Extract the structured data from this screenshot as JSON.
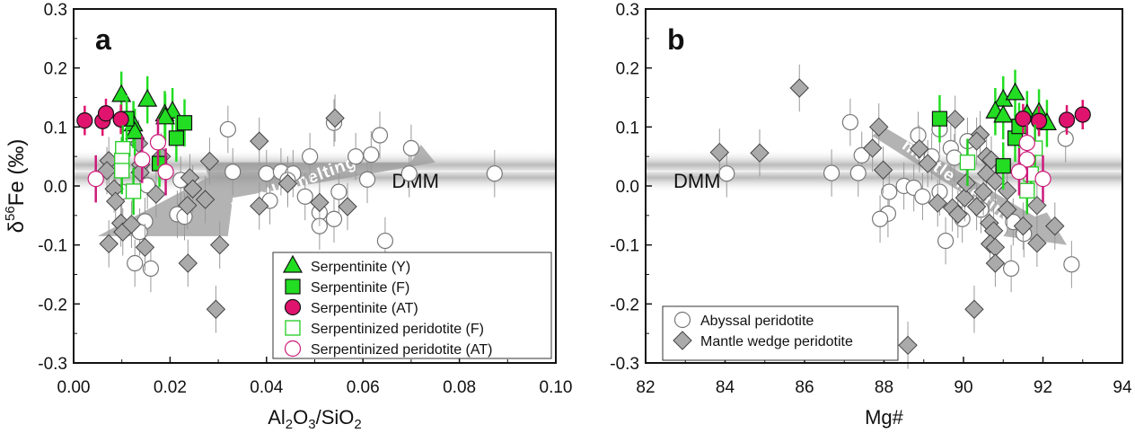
{
  "chart_data": [
    {
      "type": "scatter",
      "panel_label": "a",
      "xlabel_parts": [
        "Al",
        "2",
        "O",
        "3",
        "/SiO",
        "2"
      ],
      "ylabel_parts": [
        "δ",
        "56",
        "Fe (‰)"
      ],
      "xlim": [
        0,
        0.1
      ],
      "ylim": [
        -0.3,
        0.3
      ],
      "xticks": [
        "0.00",
        "0.02",
        "0.04",
        "0.06",
        "0.08",
        "0.10"
      ],
      "yticks": [
        "0.3",
        "0.2",
        "0.1",
        "0.0",
        "-0.1",
        "-0.2",
        "-0.3"
      ],
      "reference_band": {
        "label": "DMM",
        "y": 0.025
      },
      "annotation": "mantle melting",
      "legend_position": "bottom-right",
      "series": [
        {
          "name": "Abyssal peridotite",
          "marker": "open-circle",
          "color": "#999999",
          "yerr": 0.04,
          "in_legend": false,
          "points": [
            [
              0.032,
              0.096
            ],
            [
              0.033,
              0.024
            ],
            [
              0.04,
              0.021
            ],
            [
              0.043,
              0.024
            ],
            [
              0.049,
              0.05
            ],
            [
              0.048,
              -0.018
            ],
            [
              0.054,
              0.107
            ],
            [
              0.051,
              -0.045
            ],
            [
              0.051,
              -0.068
            ],
            [
              0.054,
              -0.056
            ],
            [
              0.055,
              -0.01
            ],
            [
              0.0585,
              0.05
            ],
            [
              0.0609,
              0.011
            ],
            [
              0.0617,
              0.053
            ],
            [
              0.0635,
              0.086
            ],
            [
              0.0646,
              -0.093
            ],
            [
              0.0696,
              0.021
            ],
            [
              0.07,
              0.064
            ],
            [
              0.0873,
              0.021
            ],
            [
              0.0127,
              -0.131
            ],
            [
              0.016,
              -0.14
            ],
            [
              0.0148,
              -0.06
            ],
            [
              0.0137,
              -0.078
            ],
            [
              0.0153,
              0.001
            ],
            [
              0.0222,
              0.01
            ],
            [
              0.0215,
              -0.048
            ],
            [
              0.023,
              -0.052
            ],
            [
              0.0407,
              -0.025
            ],
            [
              0.0455,
              0.021
            ],
            [
              0.0444,
              0.01
            ],
            [
              0.01,
              -0.01
            ]
          ]
        },
        {
          "name": "Mantle wedge peridotite",
          "marker": "diamond",
          "color": "#aaaaaa",
          "yerr": 0.04,
          "in_legend": false,
          "points": [
            [
              0.0542,
              0.115
            ],
            [
              0.0385,
              0.076
            ],
            [
              0.0282,
              0.042
            ],
            [
              0.0241,
              0.014
            ],
            [
              0.0247,
              -0.005
            ],
            [
              0.0236,
              -0.033
            ],
            [
              0.0273,
              -0.023
            ],
            [
              0.0303,
              -0.1
            ],
            [
              0.0237,
              -0.131
            ],
            [
              0.0295,
              -0.209
            ],
            [
              0.0385,
              -0.034
            ],
            [
              0.0444,
              0.004
            ],
            [
              0.051,
              -0.028
            ],
            [
              0.0568,
              -0.035
            ],
            [
              0.0171,
              -0.014
            ],
            [
              0.0182,
              0.05
            ],
            [
              0.0139,
              0.036
            ],
            [
              0.0135,
              0.072
            ],
            [
              0.0073,
              0.043
            ],
            [
              0.0069,
              0.026
            ],
            [
              0.0084,
              -0.005
            ],
            [
              0.0087,
              -0.026
            ],
            [
              0.0098,
              -0.063
            ],
            [
              0.0102,
              -0.078
            ],
            [
              0.012,
              -0.065
            ],
            [
              0.0073,
              -0.098
            ],
            [
              0.0148,
              -0.104
            ],
            [
              0.0138,
              0.023
            ]
          ]
        },
        {
          "name": "Serpentinite (Y)",
          "marker": "triangle",
          "color": "#22dd22",
          "yerr": 0.04,
          "in_legend": true,
          "points": [
            [
              0.0099,
              0.154
            ],
            [
              0.0153,
              0.146
            ],
            [
              0.0124,
              0.104
            ],
            [
              0.0127,
              0.091
            ],
            [
              0.0189,
              0.121
            ],
            [
              0.0205,
              0.126
            ],
            [
              0.019,
              0.116
            ]
          ]
        },
        {
          "name": "Serpentinite (F)",
          "marker": "square",
          "color": "#22dd22",
          "yerr": 0.04,
          "in_legend": true,
          "points": [
            [
              0.023,
              0.107
            ],
            [
              0.0213,
              0.081
            ],
            [
              0.011,
              0.114
            ],
            [
              0.0178,
              0.038
            ]
          ]
        },
        {
          "name": "Serpentinite (AT)",
          "marker": "circle",
          "color": "#e0146e",
          "yerr": 0.025,
          "in_legend": true,
          "points": [
            [
              0.0023,
              0.111
            ],
            [
              0.006,
              0.11
            ],
            [
              0.0067,
              0.123
            ],
            [
              0.0098,
              0.113
            ]
          ]
        },
        {
          "name": "Serpentinized peridotite (F)",
          "marker": "open-square",
          "color": "#22cc22",
          "yerr": 0.04,
          "in_legend": true,
          "points": [
            [
              0.0102,
              0.063
            ],
            [
              0.01,
              0.043
            ],
            [
              0.01,
              0.026
            ],
            [
              0.0124,
              -0.009
            ]
          ]
        },
        {
          "name": "Serpentinized peridotite (AT)",
          "marker": "open-circle",
          "color": "#cc1a7a",
          "yerr": 0.04,
          "in_legend": true,
          "points": [
            [
              0.0046,
              0.012
            ],
            [
              0.0142,
              0.045
            ],
            [
              0.0175,
              0.074
            ],
            [
              0.0191,
              0.024
            ]
          ]
        }
      ]
    },
    {
      "type": "scatter",
      "panel_label": "b",
      "xlabel_parts": [
        "Mg#"
      ],
      "xlim": [
        82,
        94
      ],
      "ylim": [
        -0.3,
        0.3
      ],
      "xticks": [
        "82",
        "84",
        "86",
        "88",
        "90",
        "92",
        "94"
      ],
      "yticks": [
        "0.3",
        "0.2",
        "0.1",
        "0.0",
        "-0.1",
        "-0.2",
        "-0.3"
      ],
      "reference_band": {
        "label": "DMM",
        "y": 0.025
      },
      "annotation": "mantle melting",
      "legend_position": "bottom-left",
      "series": [
        {
          "name": "Abyssal peridotite",
          "marker": "open-circle",
          "color": "#999999",
          "yerr": 0.04,
          "in_legend": true,
          "points": [
            [
              84.04,
              0.021
            ],
            [
              86.68,
              0.022
            ],
            [
              87.35,
              0.022
            ],
            [
              87.15,
              0.108
            ],
            [
              87.44,
              0.052
            ],
            [
              88.13,
              -0.01
            ],
            [
              88.1,
              -0.047
            ],
            [
              87.9,
              -0.056
            ],
            [
              88.5,
              0.0
            ],
            [
              88.75,
              -0.003
            ],
            [
              88.97,
              -0.018
            ],
            [
              88.86,
              0.086
            ],
            [
              89.2,
              0.05
            ],
            [
              89.4,
              0.096
            ],
            [
              89.55,
              -0.093
            ],
            [
              89.68,
              0.064
            ],
            [
              89.77,
              0.048
            ],
            [
              90.1,
              0.076
            ],
            [
              89.97,
              -0.056
            ],
            [
              91.2,
              -0.14
            ],
            [
              92.72,
              -0.133
            ],
            [
              92.57,
              0.08
            ],
            [
              91.52,
              -0.081
            ],
            [
              91.25,
              -0.061
            ],
            [
              90.44,
              -0.04
            ],
            [
              89.4,
              -0.01
            ]
          ]
        },
        {
          "name": "Mantle wedge peridotite",
          "marker": "diamond",
          "color": "#aaaaaa",
          "yerr": 0.04,
          "in_legend": true,
          "points": [
            [
              83.86,
              0.057
            ],
            [
              84.87,
              0.056
            ],
            [
              85.87,
              0.166
            ],
            [
              87.87,
              0.1
            ],
            [
              87.71,
              0.064
            ],
            [
              87.98,
              0.027
            ],
            [
              88.89,
              0.063
            ],
            [
              89.1,
              0.038
            ],
            [
              89.79,
              0.113
            ],
            [
              90.42,
              0.087
            ],
            [
              90.33,
              0.076
            ],
            [
              90.58,
              0.05
            ],
            [
              90.7,
              0.044
            ],
            [
              90.58,
              0.021
            ],
            [
              90.8,
              0.008
            ],
            [
              91.1,
              -0.008
            ],
            [
              89.35,
              -0.029
            ],
            [
              89.72,
              -0.037
            ],
            [
              89.86,
              -0.048
            ],
            [
              90.03,
              -0.02
            ],
            [
              90.33,
              -0.035
            ],
            [
              90.65,
              -0.063
            ],
            [
              90.76,
              -0.076
            ],
            [
              90.67,
              -0.098
            ],
            [
              90.8,
              -0.104
            ],
            [
              90.8,
              -0.131
            ],
            [
              91.85,
              -0.097
            ],
            [
              92.3,
              -0.068
            ],
            [
              91.85,
              -0.033
            ],
            [
              90.27,
              -0.209
            ],
            [
              88.6,
              -0.27
            ],
            [
              91.1,
              -0.04
            ],
            [
              91.5,
              -0.068
            ],
            [
              90.07,
              0.005
            ],
            [
              90.5,
              -0.01
            ]
          ]
        },
        {
          "name": "Serpentinite (Y)",
          "marker": "triangle",
          "color": "#22dd22",
          "yerr": 0.04,
          "in_legend": false,
          "points": [
            [
              91.0,
              0.146
            ],
            [
              91.3,
              0.157
            ],
            [
              90.8,
              0.126
            ],
            [
              91.0,
              0.119
            ],
            [
              91.6,
              0.121
            ],
            [
              91.9,
              0.124
            ],
            [
              92.1,
              0.106
            ]
          ]
        },
        {
          "name": "Serpentinite (F)",
          "marker": "square",
          "color": "#22dd22",
          "yerr": 0.04,
          "in_legend": false,
          "points": [
            [
              89.4,
              0.114
            ],
            [
              91.3,
              0.081
            ],
            [
              91.0,
              0.034
            ],
            [
              91.4,
              0.101
            ]
          ]
        },
        {
          "name": "Serpentinite (AT)",
          "marker": "circle",
          "color": "#e0146e",
          "yerr": 0.025,
          "in_legend": false,
          "points": [
            [
              91.5,
              0.114
            ],
            [
              91.9,
              0.11
            ],
            [
              92.6,
              0.112
            ],
            [
              93.0,
              0.121
            ]
          ]
        },
        {
          "name": "Serpentinized peridotite (F)",
          "marker": "open-square",
          "color": "#22cc22",
          "yerr": 0.04,
          "in_legend": false,
          "points": [
            [
              90.1,
              0.04
            ],
            [
              91.8,
              0.064
            ],
            [
              91.6,
              -0.008
            ],
            [
              91.7,
              0.02
            ]
          ]
        },
        {
          "name": "Serpentinized peridotite (AT)",
          "marker": "open-circle",
          "color": "#cc1a7a",
          "yerr": 0.04,
          "in_legend": false,
          "points": [
            [
              91.6,
              0.073
            ],
            [
              91.6,
              0.045
            ],
            [
              91.4,
              0.024
            ],
            [
              92.0,
              0.012
            ]
          ]
        }
      ]
    }
  ]
}
